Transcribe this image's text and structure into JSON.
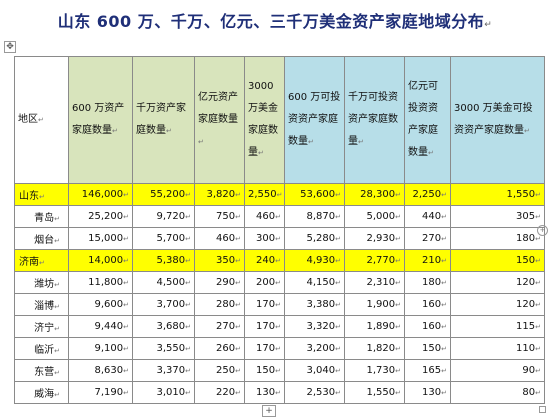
{
  "title": "山东 600 万、千万、亿元、三千万美金资产家庭地域分布",
  "para_mark": "↵",
  "handles": {
    "move": "✥",
    "add": "+",
    "resize": "+"
  },
  "colors": {
    "title": "#1f2f78",
    "green_header": "#d8e4bc",
    "blue_header": "#b7dee8",
    "highlight": "#ffff00"
  },
  "headers": [
    {
      "label": "地区",
      "style": "region"
    },
    {
      "label": "600 万资产家庭数量",
      "style": "green"
    },
    {
      "label": "千万资产家庭数量",
      "style": "green"
    },
    {
      "label": "亿元资产家庭数量",
      "style": "green"
    },
    {
      "label": "3000 万美金家庭数量",
      "style": "green"
    },
    {
      "label": "600 万可投资资产家庭数量",
      "style": "blue"
    },
    {
      "label": "千万可投资资产家庭数量",
      "style": "blue"
    },
    {
      "label": "亿元可投资资产家庭数量",
      "style": "blue"
    },
    {
      "label": "3000 万美金可投资资产家庭数量",
      "style": "blue"
    }
  ],
  "rows": [
    {
      "region": "山东",
      "highlight": true,
      "values": [
        "146,000",
        "55,200",
        "3,820",
        "2,550",
        "53,600",
        "28,300",
        "2,250",
        "1,550"
      ]
    },
    {
      "region": "青岛",
      "highlight": false,
      "values": [
        "25,200",
        "9,720",
        "750",
        "460",
        "8,870",
        "5,000",
        "440",
        "305"
      ]
    },
    {
      "region": "烟台",
      "highlight": false,
      "values": [
        "15,000",
        "5,700",
        "460",
        "300",
        "5,280",
        "2,930",
        "270",
        "180"
      ]
    },
    {
      "region": "济南",
      "highlight": true,
      "values": [
        "14,000",
        "5,380",
        "350",
        "240",
        "4,930",
        "2,770",
        "210",
        "150"
      ]
    },
    {
      "region": "潍坊",
      "highlight": false,
      "values": [
        "11,800",
        "4,500",
        "290",
        "200",
        "4,150",
        "2,310",
        "180",
        "120"
      ]
    },
    {
      "region": "淄博",
      "highlight": false,
      "values": [
        "9,600",
        "3,700",
        "280",
        "170",
        "3,380",
        "1,900",
        "160",
        "120"
      ]
    },
    {
      "region": "济宁",
      "highlight": false,
      "values": [
        "9,440",
        "3,680",
        "270",
        "170",
        "3,320",
        "1,890",
        "160",
        "115"
      ]
    },
    {
      "region": "临沂",
      "highlight": false,
      "values": [
        "9,100",
        "3,550",
        "260",
        "170",
        "3,200",
        "1,820",
        "150",
        "110"
      ]
    },
    {
      "region": "东营",
      "highlight": false,
      "values": [
        "8,630",
        "3,370",
        "250",
        "150",
        "3,040",
        "1,730",
        "165",
        "90"
      ]
    },
    {
      "region": "威海",
      "highlight": false,
      "values": [
        "7,190",
        "3,010",
        "220",
        "130",
        "2,530",
        "1,550",
        "130",
        "80"
      ]
    }
  ]
}
